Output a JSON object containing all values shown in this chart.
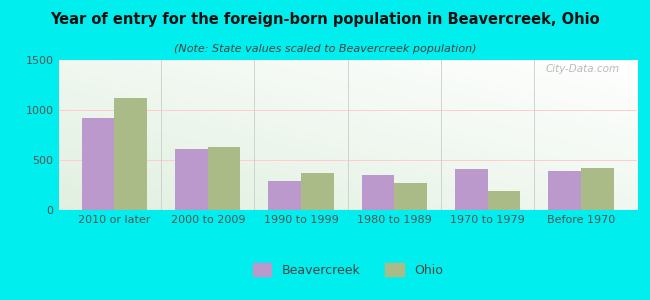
{
  "title": "Year of entry for the foreign-born population in Beavercreek, Ohio",
  "subtitle": "(Note: State values scaled to Beavercreek population)",
  "categories": [
    "2010 or later",
    "2000 to 2009",
    "1990 to 1999",
    "1980 to 1989",
    "1970 to 1979",
    "Before 1970"
  ],
  "beavercreek": [
    920,
    610,
    290,
    350,
    410,
    390
  ],
  "ohio": [
    1120,
    630,
    370,
    270,
    195,
    420
  ],
  "beavercreek_color": "#bb99cc",
  "ohio_color": "#aabb88",
  "background_outer": "#00eeee",
  "ylim": [
    0,
    1500
  ],
  "yticks": [
    0,
    500,
    1000,
    1500
  ],
  "bar_width": 0.35,
  "title_fontsize": 10.5,
  "subtitle_fontsize": 8,
  "tick_fontsize": 8,
  "legend_fontsize": 9
}
